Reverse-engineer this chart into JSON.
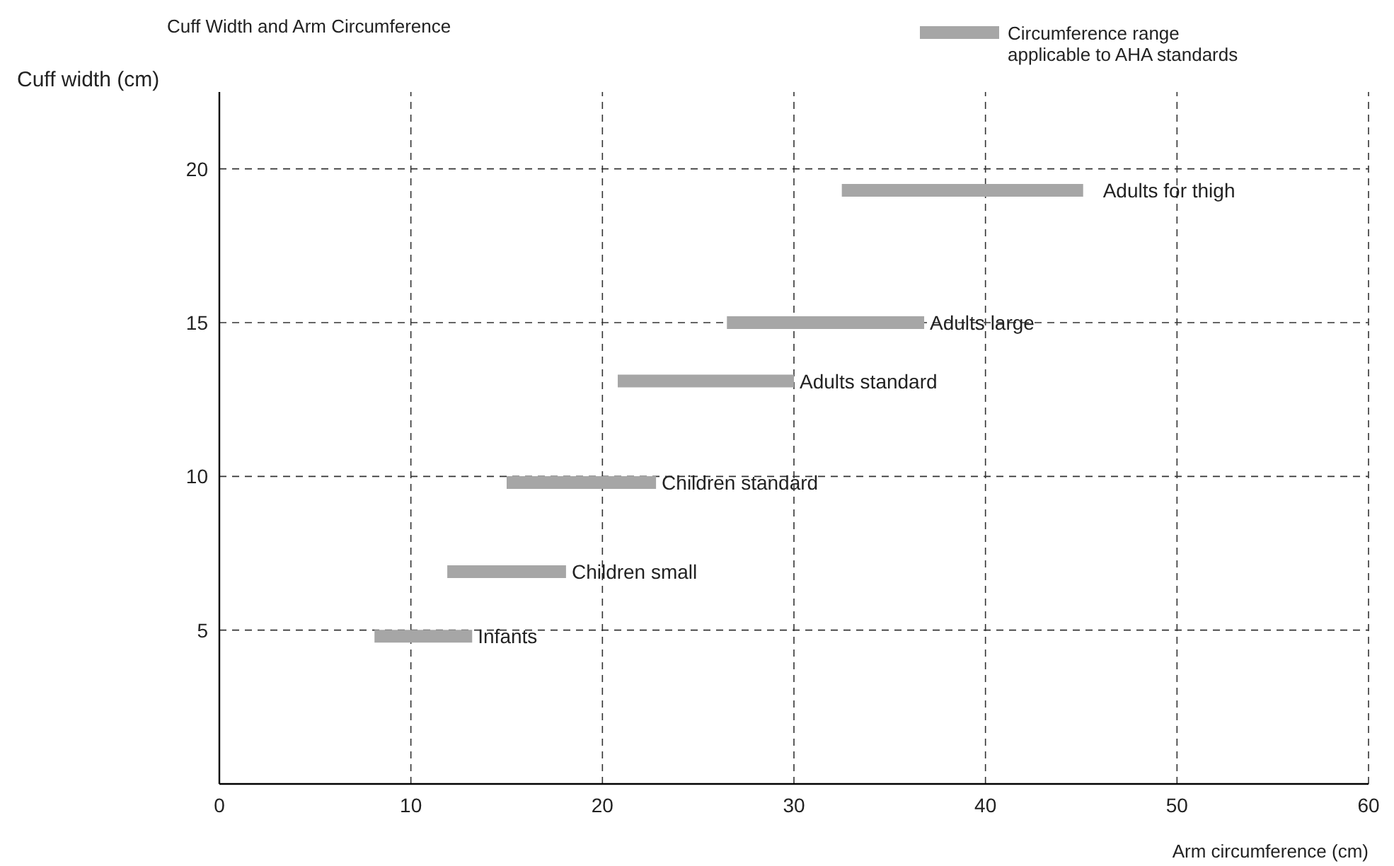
{
  "chart_data": {
    "type": "line",
    "title": "Cuff Width and Arm Circumference",
    "xlabel": "Arm circumference (cm)",
    "ylabel": "Cuff width (cm)",
    "xlim": [
      0,
      60
    ],
    "xticks": [
      0,
      10,
      20,
      30,
      40,
      50,
      60
    ],
    "ylim": [
      0,
      22.5
    ],
    "yticks": [
      5,
      10,
      15,
      20
    ],
    "grid": true,
    "legend": "top right",
    "marker": "none",
    "line_style": "solid",
    "series": [
      {
        "name": "Circumference range applicable to AHA standards",
        "color": "#a6a6a6",
        "x": [
          8.1,
          13.2
        ],
        "values": [
          4.8,
          4.8
        ]
      },
      {
        "color": "#a6a6a6",
        "x": [
          11.9,
          18.1
        ],
        "values": [
          6.9,
          6.9
        ]
      },
      {
        "color": "#a6a6a6",
        "x": [
          15.0,
          22.8
        ],
        "values": [
          9.8,
          9.8
        ]
      },
      {
        "color": "#a6a6a6",
        "x": [
          20.8,
          30.0
        ],
        "values": [
          13.1,
          13.1
        ]
      },
      {
        "color": "#a6a6a6",
        "x": [
          26.5,
          36.8
        ],
        "values": [
          15.0,
          15.0
        ]
      },
      {
        "color": "#a6a6a6",
        "x": [
          32.5,
          45.1
        ],
        "values": [
          19.3,
          19.3
        ]
      }
    ],
    "annotations": [
      {
        "text": "Infants",
        "x": 13.2,
        "y": 4.8
      },
      {
        "text": "Children small",
        "x": 18.1,
        "y": 6.9
      },
      {
        "text": "Children standard",
        "x": 22.8,
        "y": 9.8
      },
      {
        "text": "Adults standard",
        "x": 30.0,
        "y": 13.1
      },
      {
        "text": "Adults large",
        "x": 36.8,
        "y": 15.0
      },
      {
        "text": "Adults for thigh",
        "x": 45.1,
        "y": 19.3
      }
    ]
  }
}
